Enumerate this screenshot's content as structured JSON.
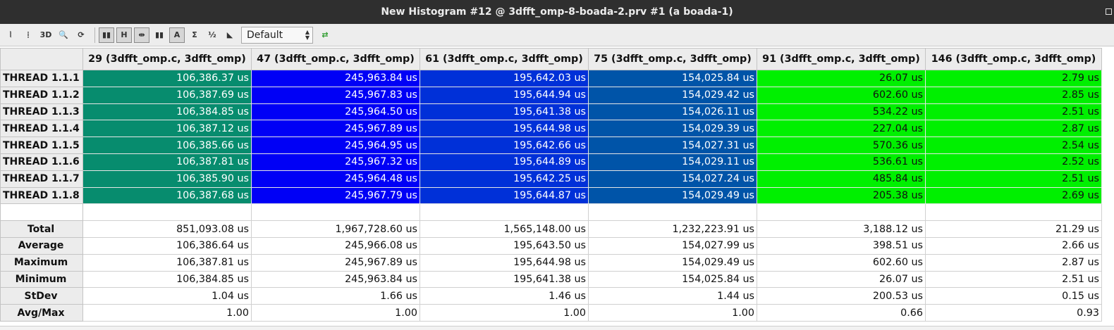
{
  "window": {
    "title": "New Histogram #12 @ 3dfft_omp-8-boada-2.prv #1 (a boada-1)"
  },
  "toolbar": {
    "buttons": [
      {
        "name": "open-control-window-icon",
        "glyph": "⦚",
        "on": false
      },
      {
        "name": "open-data-window-icon",
        "glyph": "⦙",
        "on": false
      },
      {
        "name": "3d-icon",
        "glyph": "3D",
        "on": false
      },
      {
        "name": "zoom-icon",
        "glyph": "🔍",
        "on": false
      },
      {
        "name": "redraw-icon",
        "glyph": "⟳",
        "on": false
      },
      {
        "name": "color-mode-icon",
        "glyph": "▮▮",
        "on": true
      },
      {
        "name": "horizontal-icon",
        "glyph": "H",
        "on": true
      },
      {
        "name": "hide-empty-icon",
        "glyph": "⇹",
        "on": true
      },
      {
        "name": "gradient-icon",
        "glyph": "▮▮",
        "on": false
      },
      {
        "name": "label-icon",
        "glyph": "A",
        "on": true
      },
      {
        "name": "totals-icon",
        "glyph": "Σ",
        "on": false
      },
      {
        "name": "percent-icon",
        "glyph": "½",
        "on": false
      },
      {
        "name": "semantic-icon",
        "glyph": "◣",
        "on": false
      }
    ],
    "combo_value": "Default",
    "sync_glyph": "⇄"
  },
  "table": {
    "columns": [
      "29 (3dfft_omp.c, 3dfft_omp)",
      "47 (3dfft_omp.c, 3dfft_omp)",
      "61 (3dfft_omp.c, 3dfft_omp)",
      "75 (3dfft_omp.c, 3dfft_omp)",
      "91 (3dfft_omp.c, 3dfft_omp)",
      "146 (3dfft_omp.c, 3dfft_omp)"
    ],
    "column_colors": [
      "green",
      "blue",
      "royal",
      "steel",
      "lime",
      "lime"
    ],
    "rows": [
      {
        "label": "THREAD 1.1.1",
        "values": [
          "106,386.37 us",
          "245,963.84 us",
          "195,642.03 us",
          "154,025.84 us",
          "26.07 us",
          "2.79 us"
        ]
      },
      {
        "label": "THREAD 1.1.2",
        "values": [
          "106,387.69 us",
          "245,967.83 us",
          "195,644.94 us",
          "154,029.42 us",
          "602.60 us",
          "2.85 us"
        ]
      },
      {
        "label": "THREAD 1.1.3",
        "values": [
          "106,384.85 us",
          "245,964.50 us",
          "195,641.38 us",
          "154,026.11 us",
          "534.22 us",
          "2.51 us"
        ]
      },
      {
        "label": "THREAD 1.1.4",
        "values": [
          "106,387.12 us",
          "245,967.89 us",
          "195,644.98 us",
          "154,029.39 us",
          "227.04 us",
          "2.87 us"
        ]
      },
      {
        "label": "THREAD 1.1.5",
        "values": [
          "106,385.66 us",
          "245,964.95 us",
          "195,642.66 us",
          "154,027.31 us",
          "570.36 us",
          "2.54 us"
        ]
      },
      {
        "label": "THREAD 1.1.6",
        "values": [
          "106,387.81 us",
          "245,967.32 us",
          "195,644.89 us",
          "154,029.11 us",
          "536.61 us",
          "2.52 us"
        ]
      },
      {
        "label": "THREAD 1.1.7",
        "values": [
          "106,385.90 us",
          "245,964.48 us",
          "195,642.25 us",
          "154,027.24 us",
          "485.84 us",
          "2.51 us"
        ]
      },
      {
        "label": "THREAD 1.1.8",
        "values": [
          "106,387.68 us",
          "245,967.79 us",
          "195,644.87 us",
          "154,029.49 us",
          "205.38 us",
          "2.69 us"
        ]
      }
    ],
    "stats": [
      {
        "label": "Total",
        "values": [
          "851,093.08 us",
          "1,967,728.60 us",
          "1,565,148.00 us",
          "1,232,223.91 us",
          "3,188.12 us",
          "21.29 us"
        ]
      },
      {
        "label": "Average",
        "values": [
          "106,386.64 us",
          "245,966.08 us",
          "195,643.50 us",
          "154,027.99 us",
          "398.51 us",
          "2.66 us"
        ]
      },
      {
        "label": "Maximum",
        "values": [
          "106,387.81 us",
          "245,967.89 us",
          "195,644.98 us",
          "154,029.49 us",
          "602.60 us",
          "2.87 us"
        ]
      },
      {
        "label": "Minimum",
        "values": [
          "106,384.85 us",
          "245,963.84 us",
          "195,641.38 us",
          "154,025.84 us",
          "26.07 us",
          "2.51 us"
        ]
      },
      {
        "label": "StDev",
        "values": [
          "1.04 us",
          "1.66 us",
          "1.46 us",
          "1.44 us",
          "200.53 us",
          "0.15 us"
        ]
      },
      {
        "label": "Avg/Max",
        "values": [
          "1.00",
          "1.00",
          "1.00",
          "1.00",
          "0.66",
          "0.93"
        ]
      }
    ]
  }
}
